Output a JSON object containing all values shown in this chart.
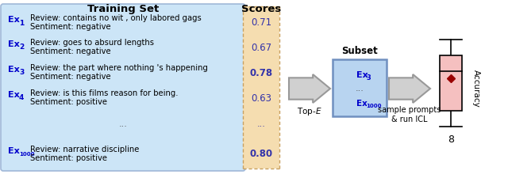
{
  "title_training": "Training Set",
  "title_scores": "Scores",
  "title_subset": "Subset",
  "label_top_e": "Top-$E$",
  "label_sample": "sample prompts\n& run ICL",
  "label_accuracy": "Accuracy",
  "label_8": "8",
  "examples": [
    {
      "id": "Ex1",
      "text1": "Review: contains no wit , only labored gags",
      "text2": "Sentiment: negative",
      "score": "0.71",
      "bold": false
    },
    {
      "id": "Ex2",
      "text1": "Review: goes to absurd lengths",
      "text2": "Sentiment: negative",
      "score": "0.67",
      "bold": false
    },
    {
      "id": "Ex3",
      "text1": "Review: the part where nothing 's happening",
      "text2": "Sentiment: negative",
      "score": "0.78",
      "bold": true
    },
    {
      "id": "Ex4",
      "text1": "Review: is this films reason for being.",
      "text2": "Sentiment: positive",
      "score": "0.63",
      "bold": false
    },
    {
      "id": "...",
      "text1": "...",
      "text2": "",
      "score": "...",
      "bold": false
    },
    {
      "id": "Ex1000",
      "text1": "Review: narrative discipline",
      "text2": "Sentiment: positive",
      "score": "0.80",
      "bold": true
    }
  ],
  "bg_blue": "#cce5f7",
  "bg_peach": "#f5ddb0",
  "box_blue_edge": "#a0b8d8",
  "subset_box_bg": "#b8d4f0",
  "subset_box_edge": "#7090c0",
  "ex_color": "#0000cc",
  "score_color": "#3333aa",
  "arrow_fill": "#d0d0d0",
  "arrow_edge": "#999999",
  "box_pink": "#f5c0c0",
  "dot_color": "#990000",
  "text_color": "#000000"
}
